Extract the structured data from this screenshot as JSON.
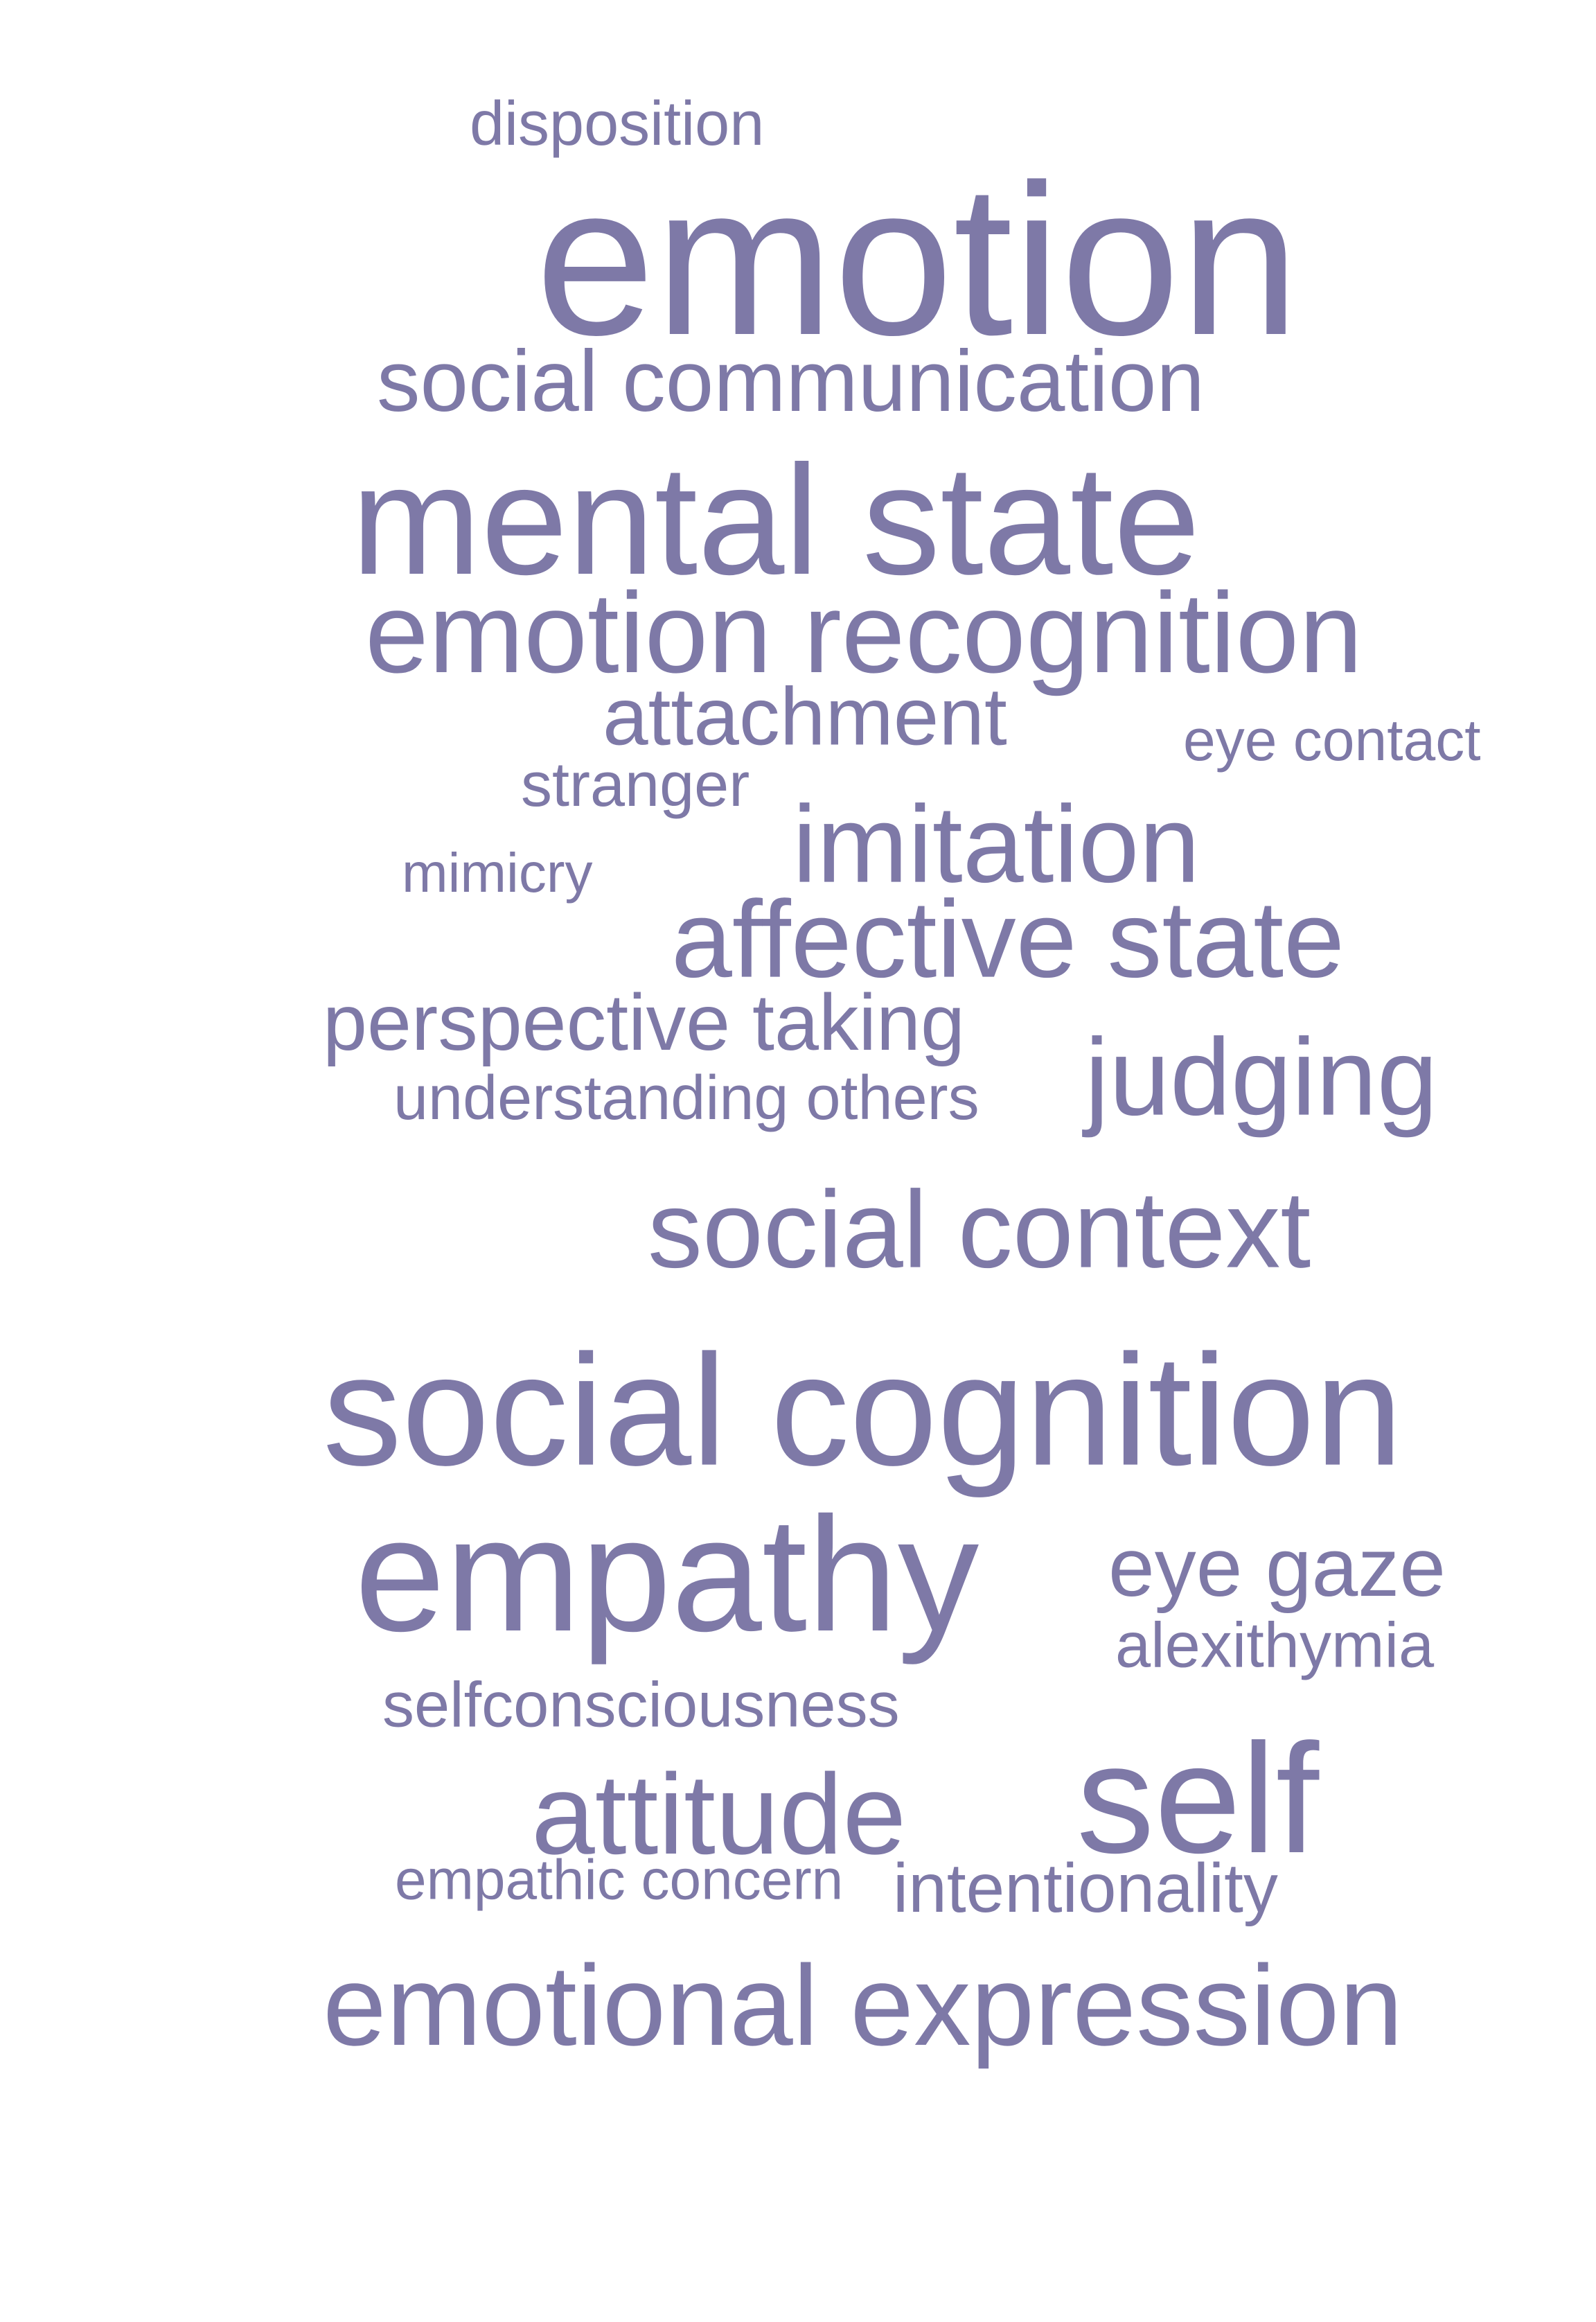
{
  "color": "#7e79a7",
  "words": [
    {
      "text": "disposition",
      "weight": 90
    },
    {
      "text": "emotion",
      "weight": 310
    },
    {
      "text": "social communication",
      "weight": 125
    },
    {
      "text": "mental state",
      "weight": 225
    },
    {
      "text": "emotion recognition",
      "weight": 165
    },
    {
      "text": "attachment",
      "weight": 118
    },
    {
      "text": "eye contact",
      "weight": 84
    },
    {
      "text": "stranger",
      "weight": 90
    },
    {
      "text": "imitation",
      "weight": 158
    },
    {
      "text": "mimicry",
      "weight": 80
    },
    {
      "text": "affective state",
      "weight": 158
    },
    {
      "text": "perspective taking",
      "weight": 115
    },
    {
      "text": "judging",
      "weight": 158
    },
    {
      "text": "understanding others",
      "weight": 90
    },
    {
      "text": "social context",
      "weight": 158
    },
    {
      "text": "social cognition",
      "weight": 228
    },
    {
      "text": "empathy",
      "weight": 235
    },
    {
      "text": "eye gaze",
      "weight": 120
    },
    {
      "text": "alexithymia",
      "weight": 92
    },
    {
      "text": "selfconsciousness",
      "weight": 92
    },
    {
      "text": "attitude",
      "weight": 165
    },
    {
      "text": "self",
      "weight": 225
    },
    {
      "text": "empathic concern",
      "weight": 82
    },
    {
      "text": "intentionality",
      "weight": 100
    },
    {
      "text": "emotional expression",
      "weight": 165
    }
  ]
}
